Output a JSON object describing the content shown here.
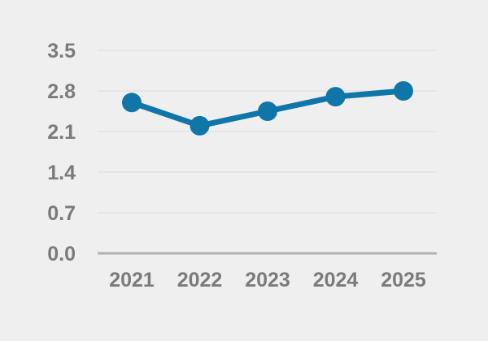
{
  "chart_data": {
    "type": "line",
    "categories": [
      "2021",
      "2022",
      "2023",
      "2024",
      "2025"
    ],
    "values": [
      2.6,
      2.2,
      2.45,
      2.7,
      2.8
    ],
    "title": "",
    "xlabel": "",
    "ylabel": "",
    "ylim": [
      0,
      3.5
    ],
    "ytick_labels": [
      "0.0",
      "0.7",
      "1.4",
      "2.1",
      "2.8",
      "3.5"
    ],
    "ytick_values": [
      0,
      0.7,
      1.4,
      2.1,
      2.8,
      3.5
    ],
    "grid": true,
    "legend": "none",
    "marker": "circle",
    "colors": {
      "background": "#efefef",
      "gridline": "#e3e3e3",
      "axis_line": "#b2b2b2",
      "series": "#1076a8",
      "tick_label": "#7b7b7b"
    }
  }
}
